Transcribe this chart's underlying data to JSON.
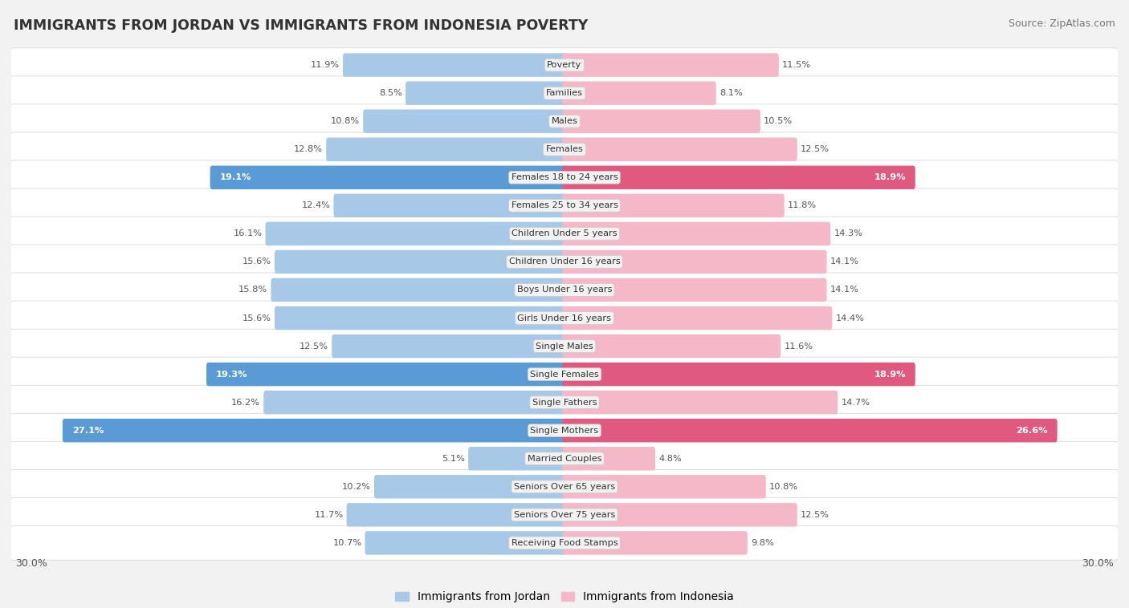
{
  "title": "IMMIGRANTS FROM JORDAN VS IMMIGRANTS FROM INDONESIA POVERTY",
  "source": "Source: ZipAtlas.com",
  "categories": [
    "Poverty",
    "Families",
    "Males",
    "Females",
    "Females 18 to 24 years",
    "Females 25 to 34 years",
    "Children Under 5 years",
    "Children Under 16 years",
    "Boys Under 16 years",
    "Girls Under 16 years",
    "Single Males",
    "Single Females",
    "Single Fathers",
    "Single Mothers",
    "Married Couples",
    "Seniors Over 65 years",
    "Seniors Over 75 years",
    "Receiving Food Stamps"
  ],
  "jordan_values": [
    11.9,
    8.5,
    10.8,
    12.8,
    19.1,
    12.4,
    16.1,
    15.6,
    15.8,
    15.6,
    12.5,
    19.3,
    16.2,
    27.1,
    5.1,
    10.2,
    11.7,
    10.7
  ],
  "indonesia_values": [
    11.5,
    8.1,
    10.5,
    12.5,
    18.9,
    11.8,
    14.3,
    14.1,
    14.1,
    14.4,
    11.6,
    18.9,
    14.7,
    26.6,
    4.8,
    10.8,
    12.5,
    9.8
  ],
  "jordan_color_normal": "#a8c8e8",
  "jordan_color_highlight": "#5b9bd5",
  "indonesia_color_normal": "#f4b8c8",
  "indonesia_color_highlight": "#e05a80",
  "highlight_rows": [
    4,
    11,
    13
  ],
  "x_max": 30.0,
  "legend_jordan": "Immigrants from Jordan",
  "legend_indonesia": "Immigrants from Indonesia",
  "background_color": "#f2f2f2",
  "row_bg_color": "#ffffff"
}
